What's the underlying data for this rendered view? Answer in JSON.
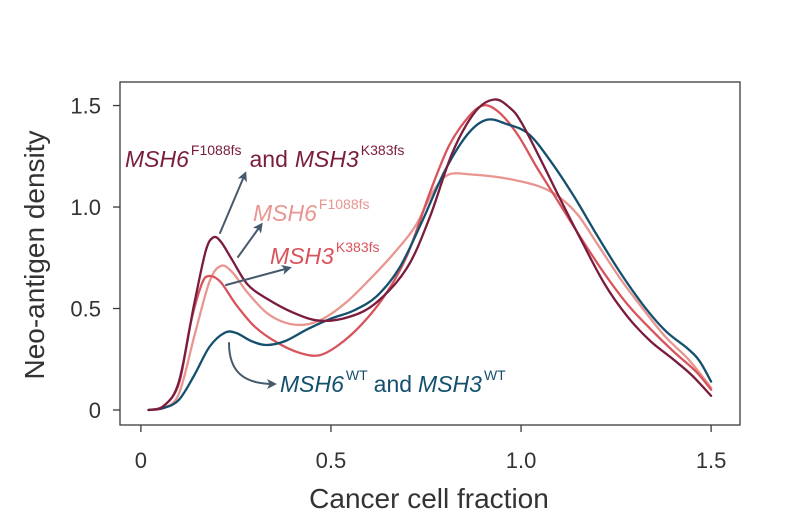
{
  "chart_data": {
    "type": "line",
    "xlabel": "Cancer cell fraction",
    "ylabel": "Neo-antigen density",
    "xlim": [
      -0.055,
      1.576
    ],
    "ylim": [
      -0.074,
      1.616
    ],
    "grid": false,
    "x_ticks": {
      "values": [
        0,
        0.5,
        1.0,
        1.5
      ],
      "labels": [
        "0",
        "0.5",
        "1.0",
        "1.5"
      ]
    },
    "y_ticks": {
      "values": [
        0,
        0.5,
        1.0,
        1.5
      ],
      "labels": [
        "0",
        "0.5",
        "1.0",
        "1.5"
      ]
    },
    "series": [
      {
        "label": {
          "gene1": "MSH6",
          "allele1": "F1088fs",
          "joiner": "and",
          "gene2": "MSH3",
          "allele2": "K383fs"
        },
        "color": "#7a1c3e",
        "x": [
          0.02,
          0.06,
          0.1,
          0.14,
          0.17,
          0.19,
          0.21,
          0.24,
          0.28,
          0.33,
          0.4,
          0.47,
          0.55,
          0.62,
          0.7,
          0.76,
          0.82,
          0.88,
          0.93,
          0.97,
          1.0,
          1.05,
          1.1,
          1.16,
          1.22,
          1.28,
          1.34,
          1.4,
          1.45,
          1.5
        ],
        "y": [
          0.0,
          0.02,
          0.14,
          0.52,
          0.78,
          0.85,
          0.83,
          0.74,
          0.62,
          0.55,
          0.48,
          0.44,
          0.46,
          0.53,
          0.7,
          0.95,
          1.27,
          1.47,
          1.53,
          1.49,
          1.42,
          1.24,
          1.05,
          0.83,
          0.62,
          0.46,
          0.34,
          0.25,
          0.17,
          0.07
        ]
      },
      {
        "label": {
          "gene1": "MSH6",
          "allele1": "F1088fs"
        },
        "color": "#e99590",
        "x": [
          0.02,
          0.06,
          0.1,
          0.14,
          0.18,
          0.21,
          0.24,
          0.28,
          0.33,
          0.38,
          0.43,
          0.48,
          0.54,
          0.6,
          0.66,
          0.72,
          0.77,
          0.81,
          0.87,
          0.93,
          0.99,
          1.05,
          1.1,
          1.15,
          1.2,
          1.26,
          1.32,
          1.38,
          1.44,
          1.5
        ],
        "y": [
          0.0,
          0.01,
          0.08,
          0.36,
          0.63,
          0.71,
          0.68,
          0.58,
          0.48,
          0.43,
          0.42,
          0.45,
          0.53,
          0.64,
          0.76,
          0.9,
          1.08,
          1.16,
          1.16,
          1.15,
          1.13,
          1.1,
          1.05,
          0.96,
          0.82,
          0.65,
          0.5,
          0.36,
          0.25,
          0.11
        ]
      },
      {
        "label": {
          "gene1": "MSH3",
          "allele1": "K383fs"
        },
        "color": "#d8545c",
        "x": [
          0.02,
          0.06,
          0.1,
          0.13,
          0.16,
          0.18,
          0.21,
          0.25,
          0.3,
          0.36,
          0.42,
          0.47,
          0.52,
          0.58,
          0.64,
          0.7,
          0.76,
          0.81,
          0.86,
          0.9,
          0.94,
          0.99,
          1.04,
          1.1,
          1.16,
          1.22,
          1.28,
          1.34,
          1.4,
          1.46,
          1.5
        ],
        "y": [
          0.0,
          0.02,
          0.13,
          0.42,
          0.62,
          0.66,
          0.63,
          0.52,
          0.41,
          0.33,
          0.28,
          0.27,
          0.32,
          0.42,
          0.56,
          0.76,
          1.07,
          1.3,
          1.44,
          1.5,
          1.47,
          1.36,
          1.2,
          1.02,
          0.84,
          0.67,
          0.52,
          0.4,
          0.29,
          0.19,
          0.1
        ]
      },
      {
        "label": {
          "gene1": "MSH6",
          "allele1": "WT",
          "joiner": "and",
          "gene2": "MSH3",
          "allele2": "WT"
        },
        "color": "#14506e",
        "x": [
          0.02,
          0.06,
          0.1,
          0.14,
          0.18,
          0.22,
          0.25,
          0.29,
          0.33,
          0.38,
          0.44,
          0.5,
          0.56,
          0.62,
          0.68,
          0.74,
          0.8,
          0.86,
          0.91,
          0.96,
          1.02,
          1.08,
          1.14,
          1.2,
          1.26,
          1.32,
          1.38,
          1.44,
          1.47,
          1.5
        ],
        "y": [
          0.0,
          0.01,
          0.05,
          0.17,
          0.31,
          0.38,
          0.38,
          0.34,
          0.32,
          0.34,
          0.4,
          0.45,
          0.49,
          0.56,
          0.7,
          0.93,
          1.18,
          1.36,
          1.43,
          1.41,
          1.36,
          1.22,
          1.05,
          0.86,
          0.68,
          0.52,
          0.39,
          0.3,
          0.24,
          0.14
        ]
      }
    ]
  }
}
